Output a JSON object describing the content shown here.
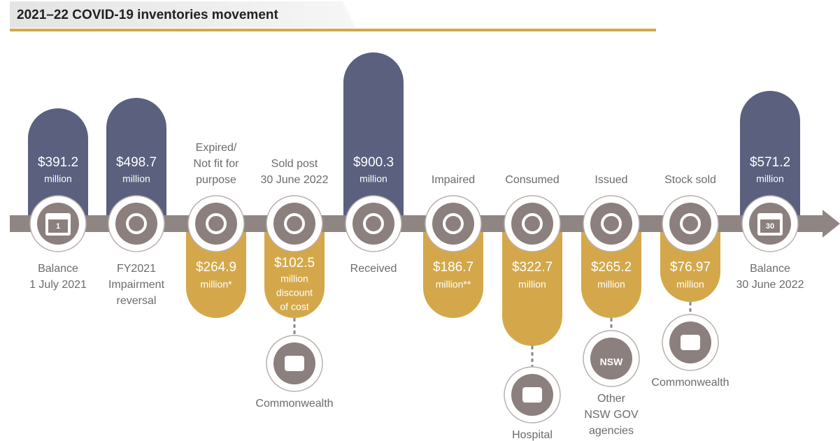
{
  "title": "2021–22 COVID-19 inventories movement",
  "inflow_color": "#5a607e",
  "outflow_color": "#d4a84a",
  "inflows": [
    {
      "amount": "$391.2",
      "unit": [
        "million"
      ],
      "label": [
        "Balance",
        "1 July 2021"
      ],
      "icon_text": "1"
    },
    {
      "amount": "$498.7",
      "unit": [
        "million"
      ],
      "label": [
        "FY2021",
        "Impairment",
        "reversal"
      ]
    },
    {
      "amount": "$900.3",
      "unit": [
        "million"
      ],
      "label": [
        "Received"
      ]
    },
    {
      "amount": "$571.2",
      "unit": [
        "million"
      ],
      "label": [
        "Balance",
        "30 June 2022"
      ],
      "icon_text": "30"
    }
  ],
  "outflows": [
    {
      "amount": "$264.9",
      "unit": [
        "million*"
      ],
      "label": [
        "Expired/",
        "Not fit for",
        "purpose"
      ]
    },
    {
      "amount": "$102.5",
      "unit": [
        "million",
        "discount",
        "of cost"
      ],
      "label": [
        "Sold post",
        "30 June 2022"
      ],
      "destination": {
        "label": [
          "Commonwealth"
        ]
      }
    },
    {
      "amount": "$186.7",
      "unit": [
        "million**"
      ],
      "label": [
        "Impaired"
      ]
    },
    {
      "amount": "$322.7",
      "unit": [
        "million"
      ],
      "label": [
        "Consumed"
      ],
      "destination": {
        "label": [
          "Hospital"
        ]
      }
    },
    {
      "amount": "$265.2",
      "unit": [
        "million"
      ],
      "label": [
        "Issued"
      ],
      "destination": {
        "icon_text": "NSW",
        "label": [
          "Other",
          "NSW GOV",
          "agencies"
        ]
      }
    },
    {
      "amount": "$76.97",
      "unit": [
        "million"
      ],
      "label": [
        "Stock sold"
      ],
      "destination": {
        "label": [
          "Commonwealth"
        ]
      }
    }
  ]
}
